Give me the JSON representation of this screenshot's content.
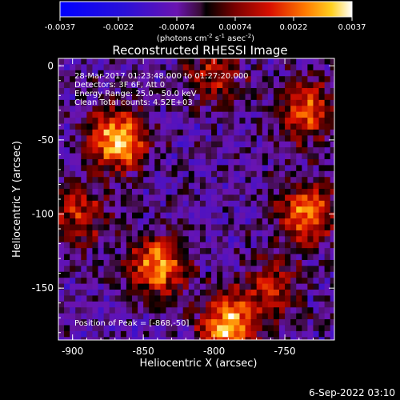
{
  "chart_data": {
    "type": "heatmap",
    "title": "Reconstructed RHESSI Image",
    "xlabel": "Heliocentric X (arcsec)",
    "ylabel": "Heliocentric Y (arcsec)",
    "xlim": [
      -910,
      -715
    ],
    "ylim": [
      -185,
      5
    ],
    "x_ticks": [
      -900,
      -850,
      -800,
      -750
    ],
    "y_ticks": [
      0,
      -50,
      -100,
      -150
    ],
    "colorbar": {
      "range": [
        -0.0037,
        0.0037
      ],
      "ticks": [
        "-0.0037",
        "-0.0022",
        "-0.00074",
        "0.00074",
        "0.0022",
        "0.0037"
      ],
      "unit_parts": [
        "(photons cm",
        "-2",
        " s",
        "-1",
        " asec",
        "-2",
        ")"
      ]
    },
    "annotations": [
      "28-Mar-2017 01:23:48.000 to 01:27:20.000",
      "Detectors: 3F 6F, Att 0",
      "Energy Range: 25.0 - 50.0 keV",
      "Clean     Total counts: 4.52E+03"
    ],
    "peak_annotation": "Position of Peak = [-868,-50]",
    "peak_position": [
      -868,
      -50
    ],
    "bright_sources": [
      {
        "x": -868,
        "y": -50,
        "intensity": 1.0
      },
      {
        "x": -840,
        "y": -135,
        "intensity": 0.85
      },
      {
        "x": -790,
        "y": -175,
        "intensity": 0.95
      },
      {
        "x": -735,
        "y": -100,
        "intensity": 0.8
      },
      {
        "x": -735,
        "y": -30,
        "intensity": 0.7
      },
      {
        "x": -895,
        "y": -100,
        "intensity": 0.55
      },
      {
        "x": -800,
        "y": -5,
        "intensity": 0.5
      },
      {
        "x": -760,
        "y": -150,
        "intensity": 0.5
      }
    ]
  },
  "footer": {
    "timestamp": "6-Sep-2022 03:10"
  }
}
